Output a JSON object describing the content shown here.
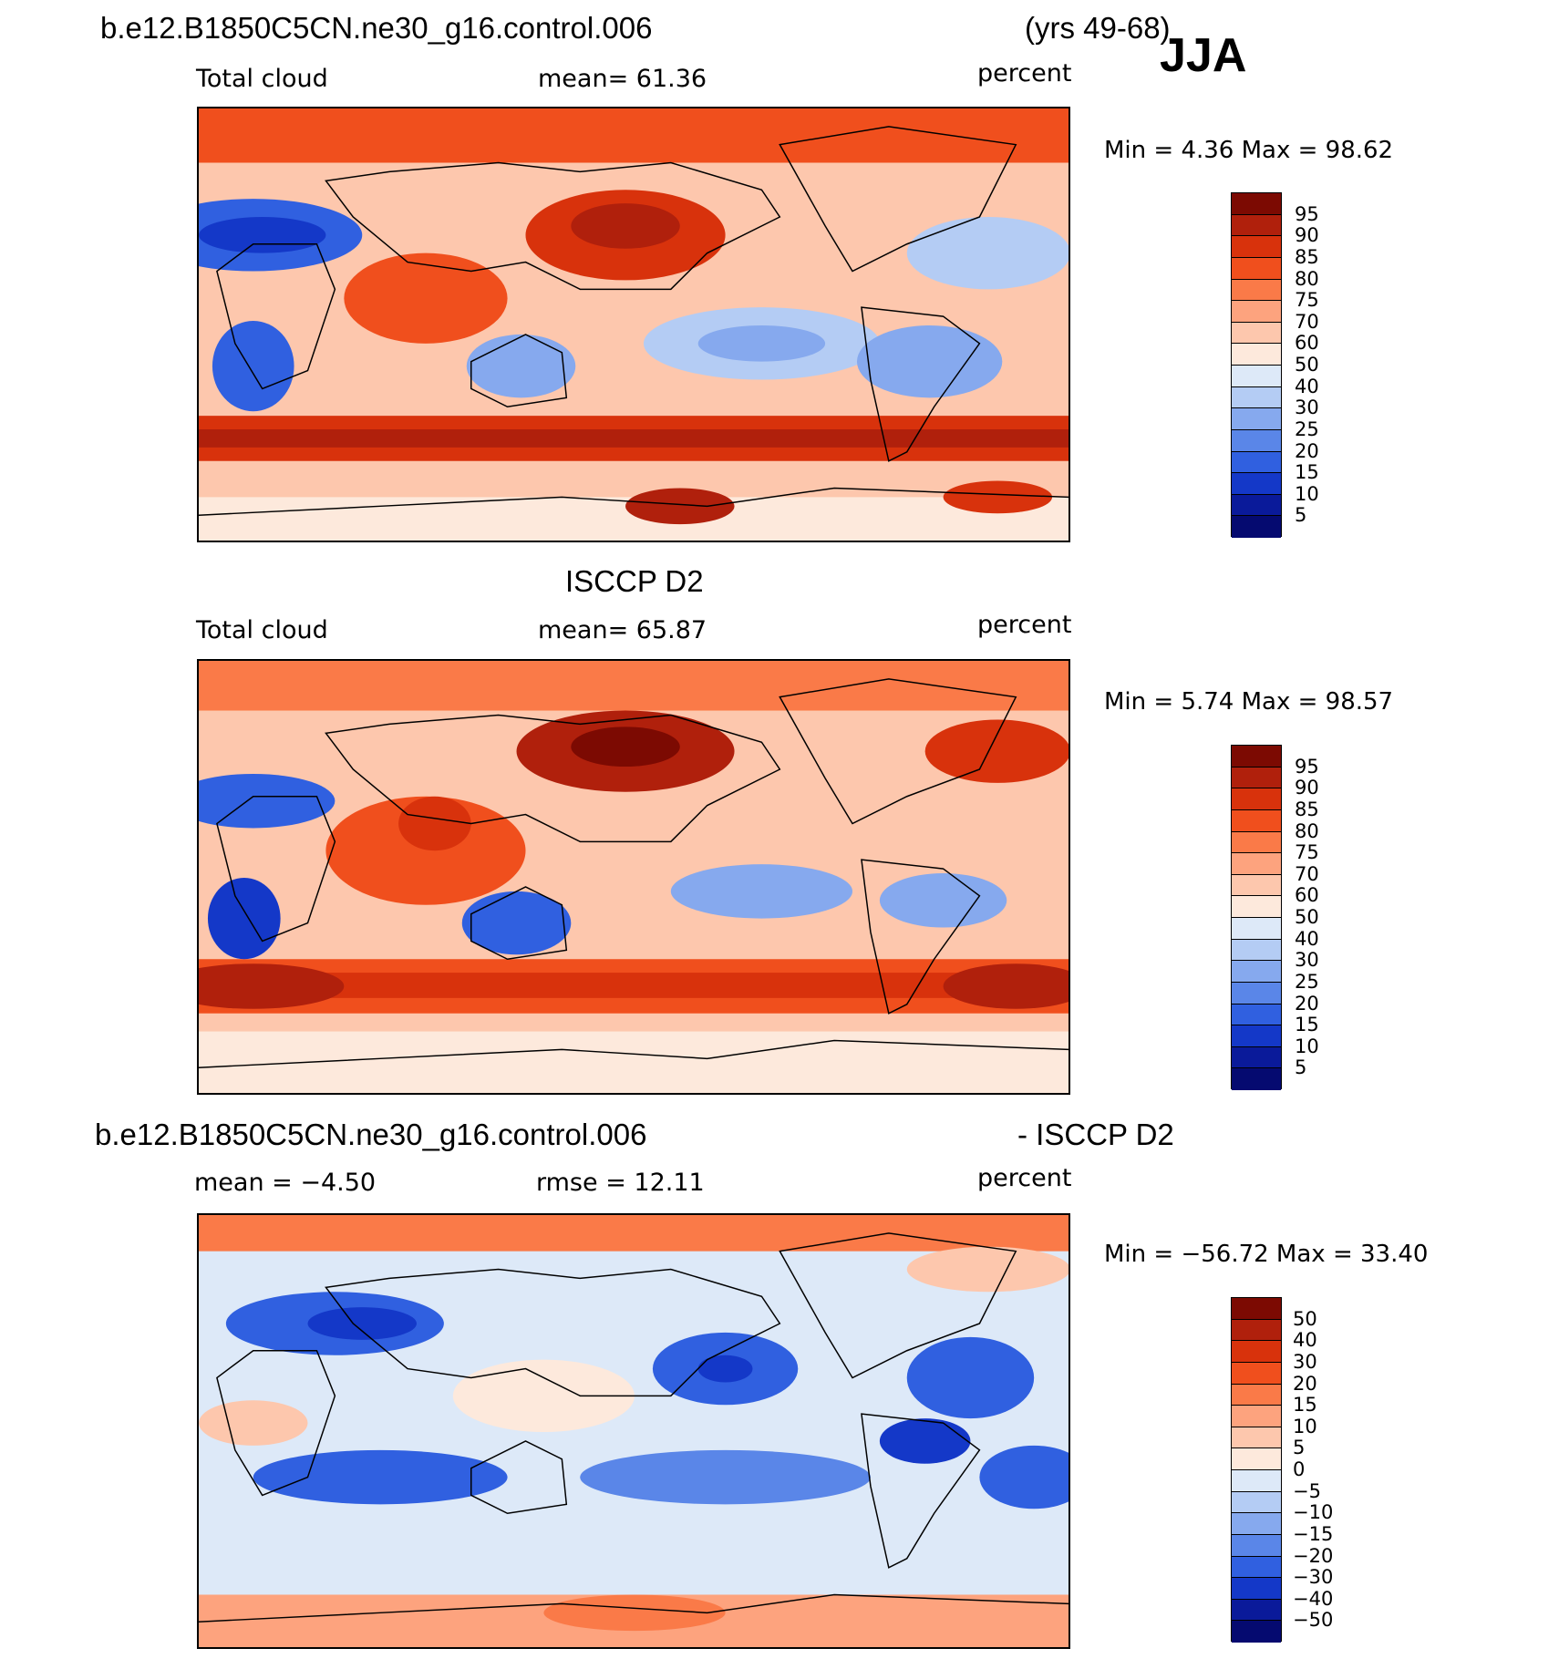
{
  "header": {
    "case_name": "b.e12.B1850C5CN.ne30_g16.control.006",
    "years": "(yrs 49-68)",
    "season": "JJA"
  },
  "panels": [
    {
      "title": "",
      "left_label": "Total cloud",
      "mean_label": "mean=   61.36",
      "units": "percent",
      "minmax": "Min =     4.36 Max =    98.62",
      "levels": [
        "95",
        "90",
        "85",
        "80",
        "75",
        "70",
        "60",
        "50",
        "40",
        "30",
        "25",
        "20",
        "15",
        "10",
        "5"
      ]
    },
    {
      "title": "ISCCP D2",
      "left_label": "Total cloud",
      "mean_label": "mean=   65.87",
      "units": "percent",
      "minmax": "Min =     5.74 Max =    98.57",
      "levels": [
        "95",
        "90",
        "85",
        "80",
        "75",
        "70",
        "60",
        "50",
        "40",
        "30",
        "25",
        "20",
        "15",
        "10",
        "5"
      ]
    },
    {
      "title_left": "b.e12.B1850C5CN.ne30_g16.control.006",
      "title_right": "- ISCCP D2",
      "left_label": "mean =   −4.50",
      "mean_label": "rmse =    12.11",
      "units": "percent",
      "minmax": "Min = −56.72  Max =    33.40",
      "levels": [
        "50",
        "40",
        "30",
        "20",
        "15",
        "10",
        "5",
        "0",
        "−5",
        "−10",
        "−15",
        "−20",
        "−30",
        "−40",
        "−50"
      ]
    }
  ],
  "colors": [
    "#7c0a02",
    "#b0200c",
    "#d8320c",
    "#f04f1d",
    "#fa7a48",
    "#fda37e",
    "#fdc7ad",
    "#fde9dc",
    "#dde9f8",
    "#b4ccf4",
    "#86a9ee",
    "#5a86e8",
    "#3060e0",
    "#1438c8",
    "#0a1a9a",
    "#050a70"
  ]
}
